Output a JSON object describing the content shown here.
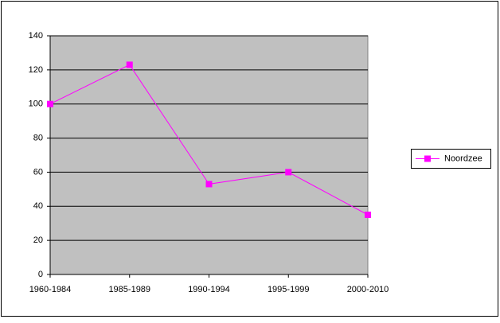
{
  "chart_data": {
    "type": "line",
    "categories": [
      "1960-1984",
      "1985-1989",
      "1990-1994",
      "1995-1999",
      "2000-2010"
    ],
    "series": [
      {
        "name": "Noordzee",
        "color": "#ff00ff",
        "values": [
          100,
          123,
          53,
          60,
          35
        ]
      }
    ],
    "ylim": [
      0,
      140
    ],
    "yticks": [
      0,
      20,
      40,
      60,
      80,
      100,
      120,
      140
    ],
    "grid": true,
    "legend": "right"
  }
}
